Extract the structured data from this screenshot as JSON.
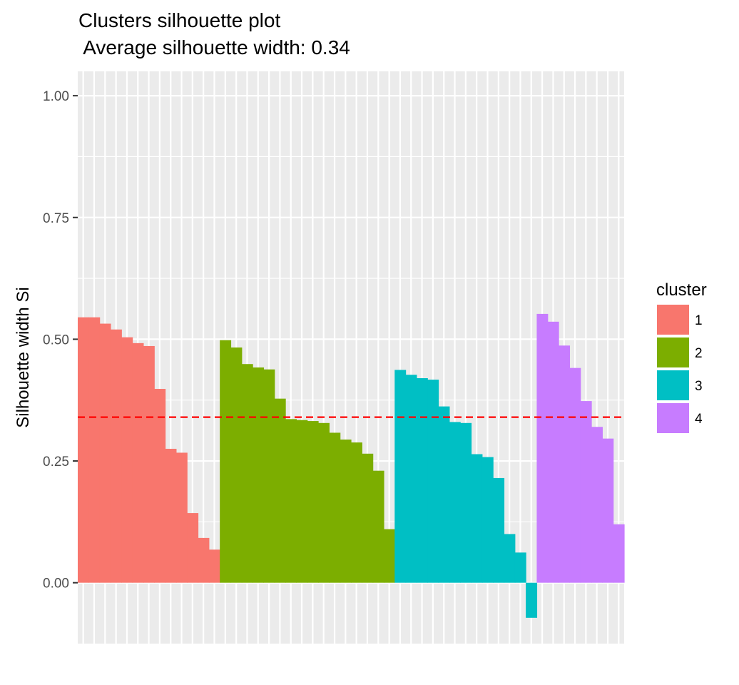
{
  "chart_data": {
    "type": "bar",
    "title": "Clusters silhouette plot",
    "subtitle": " Average silhouette width: 0.34",
    "xlabel": "",
    "ylabel": "Silhouette width Si",
    "ylim": [
      -0.125,
      1.05
    ],
    "yticks": [
      "0.00",
      "0.25",
      "0.50",
      "0.75",
      "1.00"
    ],
    "ytick_values": [
      0,
      0.25,
      0.5,
      0.75,
      1.0
    ],
    "grid": true,
    "average_silhouette": 0.34,
    "legend": {
      "title": "cluster",
      "placement": "right"
    },
    "series": [
      {
        "name": "1",
        "color": "#F8766D",
        "values": [
          0.545,
          0.545,
          0.532,
          0.52,
          0.504,
          0.492,
          0.486,
          0.398,
          0.275,
          0.267,
          0.143,
          0.092,
          0.068
        ]
      },
      {
        "name": "2",
        "color": "#7CAE00",
        "values": [
          0.498,
          0.483,
          0.449,
          0.442,
          0.438,
          0.378,
          0.336,
          0.334,
          0.332,
          0.328,
          0.308,
          0.294,
          0.288,
          0.265,
          0.23,
          0.11
        ]
      },
      {
        "name": "3",
        "color": "#00BFC4",
        "values": [
          0.437,
          0.427,
          0.42,
          0.417,
          0.362,
          0.33,
          0.328,
          0.264,
          0.258,
          0.215,
          0.1,
          0.062,
          -0.072
        ]
      },
      {
        "name": "4",
        "color": "#C77CFF",
        "values": [
          0.552,
          0.536,
          0.487,
          0.441,
          0.373,
          0.32,
          0.296,
          0.12
        ]
      }
    ]
  }
}
